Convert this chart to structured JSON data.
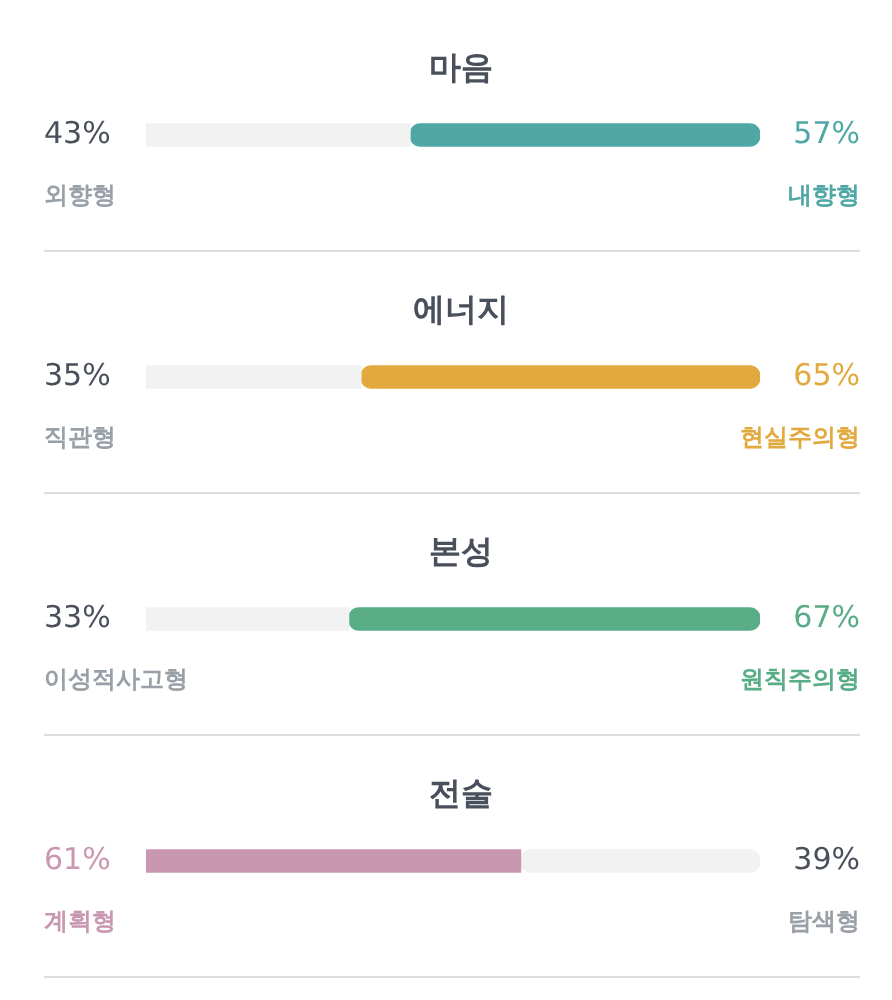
{
  "chart_data": [
    {
      "type": "bar",
      "orientation": "horizontal",
      "stacked": true,
      "title": "마음",
      "categories": [
        null
      ],
      "xlim": [
        0,
        100
      ],
      "tick_labels": false,
      "legend": false,
      "series": [
        {
          "name": "외향형",
          "color": "#f2f2f2",
          "values": [
            43
          ],
          "value_labels": [
            "43%"
          ]
        },
        {
          "name": "내향형",
          "color": "#4fa8a5",
          "values": [
            57
          ],
          "value_labels": [
            "57%"
          ]
        }
      ]
    },
    {
      "type": "bar",
      "orientation": "horizontal",
      "stacked": true,
      "title": "에너지",
      "categories": [
        null
      ],
      "xlim": [
        0,
        100
      ],
      "tick_labels": false,
      "legend": false,
      "series": [
        {
          "name": "직관형",
          "color": "#f2f2f2",
          "values": [
            35
          ],
          "value_labels": [
            "35%"
          ]
        },
        {
          "name": "현실주의형",
          "color": "#e2a93f",
          "values": [
            65
          ],
          "value_labels": [
            "65%"
          ]
        }
      ]
    },
    {
      "type": "bar",
      "orientation": "horizontal",
      "stacked": true,
      "title": "본성",
      "categories": [
        null
      ],
      "xlim": [
        0,
        100
      ],
      "tick_labels": false,
      "legend": false,
      "series": [
        {
          "name": "이성적사고형",
          "color": "#f2f2f2",
          "values": [
            33
          ],
          "value_labels": [
            "33%"
          ]
        },
        {
          "name": "원칙주의형",
          "color": "#58ac86",
          "values": [
            67
          ],
          "value_labels": [
            "67%"
          ]
        }
      ]
    },
    {
      "type": "bar",
      "orientation": "horizontal",
      "stacked": true,
      "title": "전술",
      "categories": [
        null
      ],
      "xlim": [
        0,
        100
      ],
      "tick_labels": false,
      "legend": false,
      "series": [
        {
          "name": "계획형",
          "color": "#c998b0",
          "values": [
            61
          ],
          "value_labels": [
            "61%"
          ]
        },
        {
          "name": "탐색형",
          "color": "#f2f2f2",
          "values": [
            39
          ],
          "value_labels": [
            "39%"
          ]
        }
      ]
    }
  ]
}
